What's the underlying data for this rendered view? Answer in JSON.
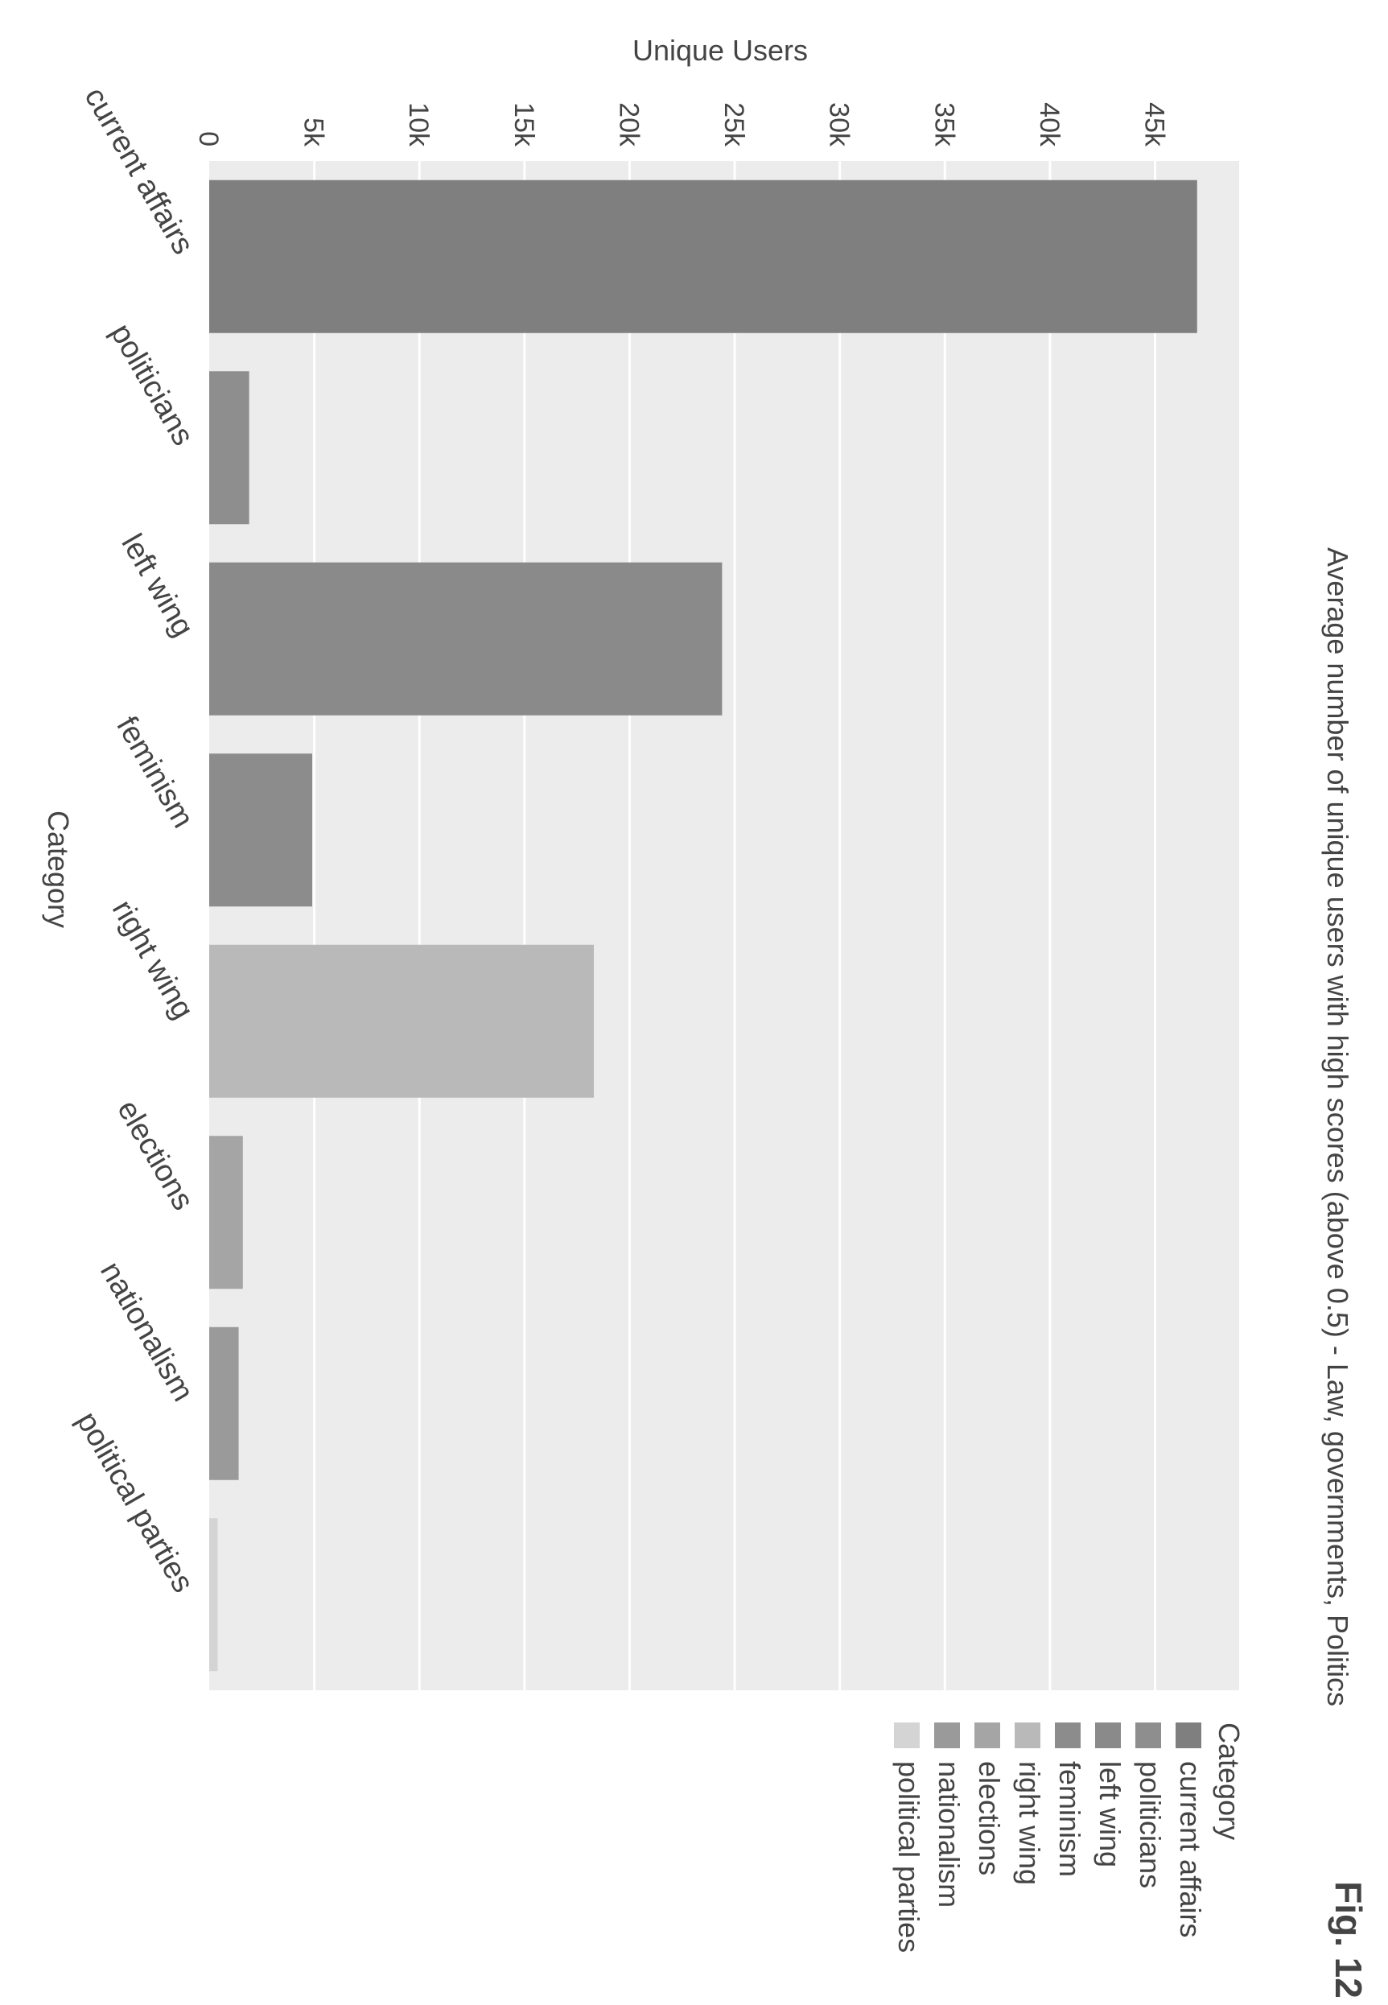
{
  "figure_label": "Fig. 12",
  "chart_data": {
    "type": "bar",
    "title": "Average number of unique users with high scores (above 0.5) - Law, governments, Politics",
    "xlabel": "Category",
    "ylabel": "Unique Users",
    "categories": [
      "current affairs",
      "politicians",
      "left wing",
      "feminism",
      "right wing",
      "elections",
      "nationalism",
      "political parties"
    ],
    "values": [
      47000,
      1900,
      24400,
      4900,
      18300,
      1600,
      1400,
      400
    ],
    "ylim": [
      0,
      49000
    ],
    "yticks": [
      0,
      5000,
      10000,
      15000,
      20000,
      25000,
      30000,
      35000,
      40000,
      45000
    ],
    "ytick_labels": [
      "0",
      "5k",
      "10k",
      "15k",
      "20k",
      "25k",
      "30k",
      "35k",
      "40k",
      "45k"
    ],
    "grid": true,
    "legend": {
      "title": "Category",
      "placement": "right",
      "entries": [
        "current affairs",
        "politicians",
        "left wing",
        "feminism",
        "right wing",
        "elections",
        "nationalism",
        "political parties"
      ]
    },
    "colors": [
      "#7f7f7f",
      "#8e8e8e",
      "#8a8a8a",
      "#8c8c8c",
      "#b9b9b9",
      "#a5a5a5",
      "#9a9a9a",
      "#d4d4d4"
    ],
    "background_color": "#ececec",
    "grid_color": "#ffffff"
  }
}
